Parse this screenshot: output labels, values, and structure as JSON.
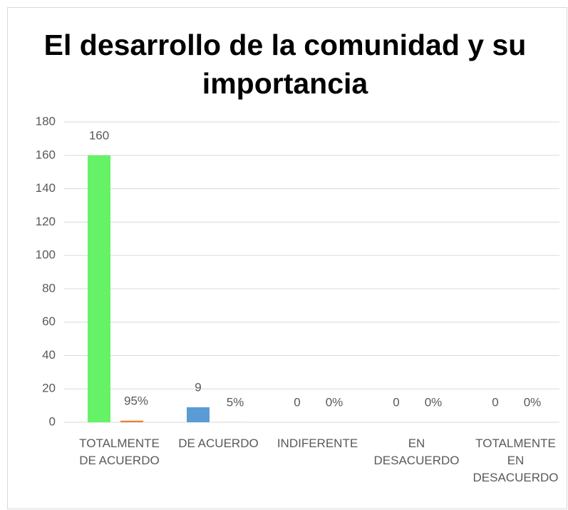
{
  "chart_data": {
    "type": "bar",
    "title": "El desarrollo de la comunidad y su importancia",
    "categories": [
      "TOTALMENTE DE ACUERDO",
      "DE ACUERDO",
      "INDIFERENTE",
      "EN DESACUERDO",
      "TOTALMENTE EN DESACUERDO"
    ],
    "series": [
      {
        "colors": [
          "#66f266",
          "#5b9bd5",
          "#5b9bd5",
          "#5b9bd5",
          "#5b9bd5"
        ],
        "values": [
          160,
          9,
          0,
          0,
          0
        ]
      },
      {
        "color": "#ed7d31",
        "values": [
          0.95,
          0.05,
          0,
          0,
          0
        ],
        "value_labels": [
          "95%",
          "5%",
          "0%",
          "0%",
          "0%"
        ]
      }
    ],
    "ylim": [
      0,
      180
    ],
    "yticks": [
      0,
      20,
      40,
      60,
      80,
      100,
      120,
      140,
      160,
      180
    ],
    "grid": true
  }
}
